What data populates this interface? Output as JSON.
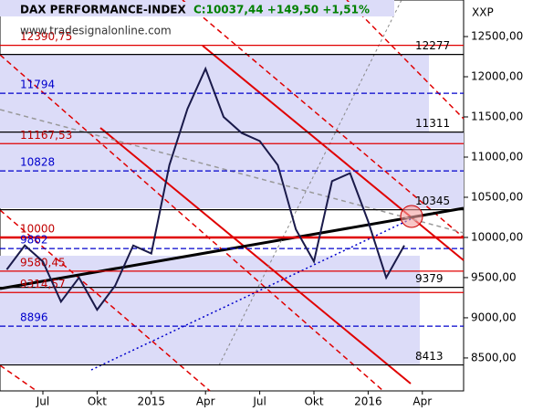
{
  "chart_data": {
    "type": "line",
    "title": "DAX PERFORMANCE-INDEX",
    "subtitle": "C:10037,44 +149,50 +1,51%",
    "watermark": "www.tradesignalonline.com",
    "corner_label": "XXP",
    "categories": [
      null,
      null,
      "Jul",
      null,
      null,
      "Okt",
      null,
      null,
      "2015",
      null,
      null,
      "Apr",
      null,
      null,
      "Jul",
      null,
      null,
      "Okt",
      null,
      null,
      "2016",
      null,
      null,
      "Apr"
    ],
    "series": [
      {
        "name": "DAX",
        "color": "#1a1a4a",
        "values": [
          9600,
          9900,
          9700,
          9200,
          9500,
          9100,
          9400,
          9900,
          9800,
          10900,
          11600,
          12100,
          11500,
          11300,
          11200,
          10900,
          10100,
          9700,
          10700,
          10800,
          10200,
          9500,
          9900,
          null
        ]
      }
    ],
    "ylim": [
      8090,
      12955
    ],
    "yticks": [
      {
        "value": 8500,
        "label": "8500,00"
      },
      {
        "value": 9000,
        "label": "9000,00"
      },
      {
        "value": 9500,
        "label": "9500,00"
      },
      {
        "value": 10000,
        "label": "10000,00"
      },
      {
        "value": 10500,
        "label": "10500,00"
      },
      {
        "value": 11000,
        "label": "11000,00"
      },
      {
        "value": 11500,
        "label": "11500,00"
      },
      {
        "value": 12000,
        "label": "12000,00"
      },
      {
        "value": 12500,
        "label": "12500,00"
      }
    ],
    "levels": [
      {
        "value": 12390.75,
        "label": "12390,75",
        "color": "#e00000"
      },
      {
        "value": 12277,
        "label": "12277",
        "color": "#000000"
      },
      {
        "value": 11794,
        "label": "11794",
        "color": "#0000cc"
      },
      {
        "value": 11311,
        "label": "11311",
        "color": "#000000"
      },
      {
        "value": 11167.53,
        "label": "11167,53",
        "color": "#e00000"
      },
      {
        "value": 10828,
        "label": "10828",
        "color": "#0000cc"
      },
      {
        "value": 10345,
        "label": "10345",
        "color": "#000000"
      },
      {
        "value": 10000,
        "label": "10000",
        "color": "#e00000"
      },
      {
        "value": 9862,
        "label": "9862",
        "color": "#0000cc"
      },
      {
        "value": 9580.45,
        "label": "9580,45",
        "color": "#e00000"
      },
      {
        "value": 9379,
        "label": "9379",
        "color": "#000000"
      },
      {
        "value": 9314.57,
        "label": "9314,57",
        "color": "#e00000"
      },
      {
        "value": 8896,
        "label": "8896",
        "color": "#0000cc"
      },
      {
        "value": 8413,
        "label": "8413",
        "color": "#000000"
      }
    ]
  }
}
